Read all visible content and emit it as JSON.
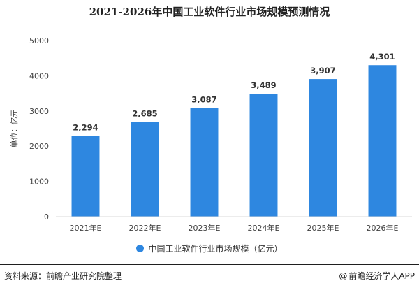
{
  "page": {
    "source": "资料来源：前瞻产业研究院整理",
    "brand_icon": "at-sign-icon",
    "brand_symbol": "@",
    "brand": "前瞻经济学人APP"
  },
  "chart_data": {
    "type": "bar",
    "title": "2021-2026年中国工业软件行业市场规模预测情况",
    "ylabel": "单位：亿元",
    "xlabel": "",
    "categories": [
      "2021年E",
      "2022年E",
      "2023年E",
      "2024年E",
      "2025年E",
      "2026年E"
    ],
    "series": [
      {
        "name": "中国工业软件行业市场规模（亿元）",
        "values": [
          2294,
          2685,
          3087,
          3489,
          3907,
          4301
        ],
        "value_labels": [
          "2,294",
          "2,685",
          "3,087",
          "3,489",
          "3,907",
          "4,301"
        ],
        "color": "#2e87e0"
      }
    ],
    "ylim": [
      0,
      5000
    ],
    "yticks": [
      0,
      1000,
      2000,
      3000,
      4000,
      5000
    ],
    "grid": false,
    "legend_position": "bottom-center"
  }
}
